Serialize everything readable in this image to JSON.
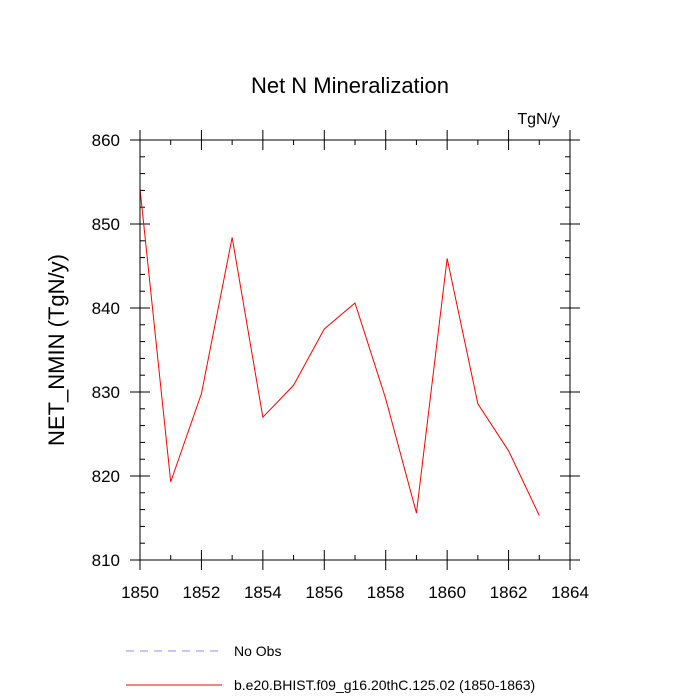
{
  "chart_data": {
    "type": "line",
    "title": "Net N Mineralization",
    "units_label": "TgN/y",
    "xlabel": "",
    "ylabel": "NET_NMIN  (TgN/y)",
    "xlim": [
      1850,
      1864
    ],
    "ylim": [
      810,
      860
    ],
    "x_ticks": [
      1850,
      1852,
      1854,
      1856,
      1858,
      1860,
      1862,
      1864
    ],
    "y_ticks": [
      810,
      820,
      830,
      840,
      850,
      860
    ],
    "x_minor_step": 1,
    "y_minor_step": 2,
    "series": [
      {
        "name": "b.e20.BHIST.f09_g16.20thC.125.02 (1850-1863)",
        "color": "#ff0000",
        "dash": "solid",
        "x": [
          1850,
          1851,
          1852,
          1853,
          1854,
          1855,
          1856,
          1857,
          1858,
          1859,
          1860,
          1861,
          1862,
          1863
        ],
        "values": [
          854.2,
          819.3,
          829.8,
          848.4,
          827.0,
          830.8,
          837.5,
          840.6,
          829.2,
          815.6,
          845.9,
          828.6,
          823.0,
          815.3
        ]
      }
    ],
    "legend": [
      {
        "label": "No Obs",
        "color": "#8c8cff",
        "dash": "dashed"
      },
      {
        "label": "b.e20.BHIST.f09_g16.20thC.125.02 (1850-1863)",
        "color": "#ff0000",
        "dash": "solid"
      }
    ]
  }
}
